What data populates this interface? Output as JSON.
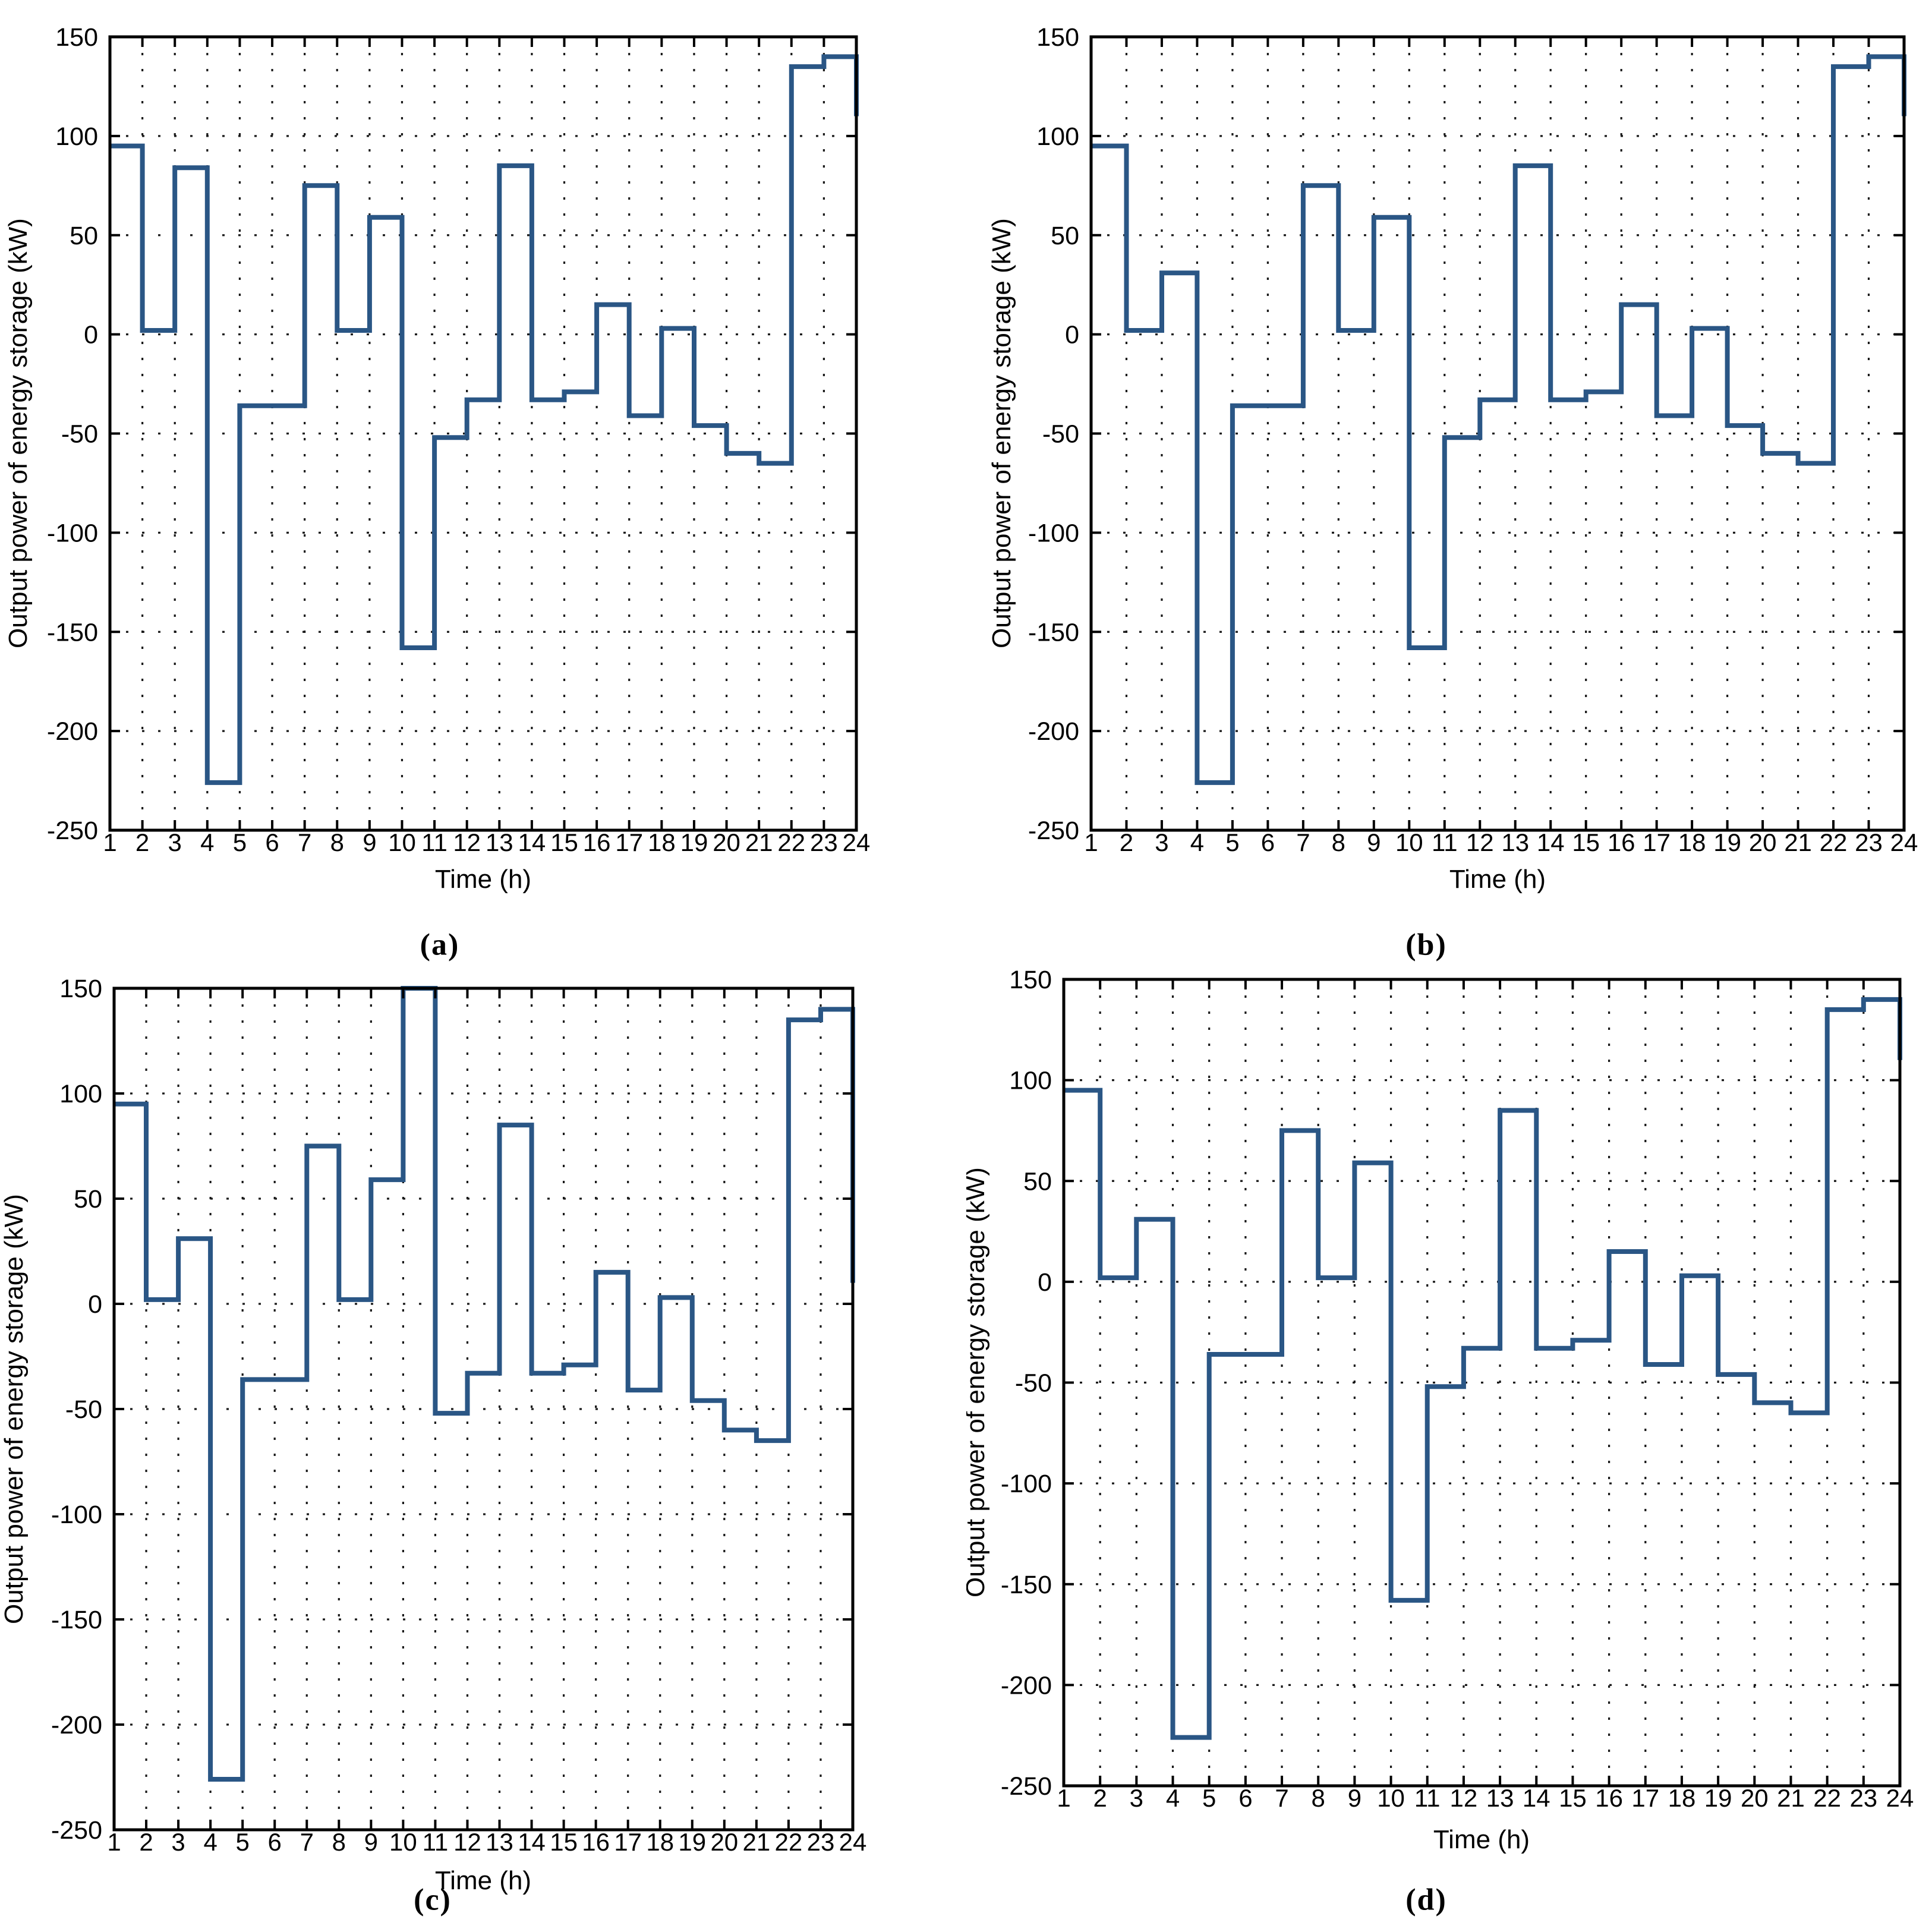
{
  "figure": {
    "background_color": "#ffffff",
    "frame_color": "#000000",
    "grid_style": "dotted",
    "panel_captions": [
      "(a)",
      "(b)",
      "(c)",
      "(d)"
    ]
  },
  "chart_data": [
    {
      "id": "a",
      "caption": "(a)",
      "type": "line",
      "subtype": "stairs",
      "xlabel": "Time (h)",
      "ylabel": "Output power of energy storage (kW)",
      "xlim": [
        1,
        24
      ],
      "ylim": [
        -250,
        150
      ],
      "xticks": [
        1,
        2,
        3,
        4,
        5,
        6,
        7,
        8,
        9,
        10,
        11,
        12,
        13,
        14,
        15,
        16,
        17,
        18,
        19,
        20,
        21,
        22,
        23,
        24
      ],
      "yticks": [
        150,
        100,
        50,
        0,
        -50,
        -100,
        -150,
        -200,
        -250
      ],
      "grid": true,
      "legend": null,
      "line_color": "#2a5685",
      "x": [
        1,
        2,
        3,
        4,
        5,
        6,
        7,
        8,
        9,
        10,
        11,
        12,
        13,
        14,
        15,
        16,
        17,
        18,
        19,
        20,
        21,
        22,
        23,
        24
      ],
      "values": [
        95,
        2,
        84,
        -226,
        -36,
        -36,
        75,
        2,
        59,
        -158,
        -52,
        -33,
        85,
        -33,
        -29,
        15,
        -41,
        3,
        -46,
        -60,
        -65,
        135,
        140,
        110
      ]
    },
    {
      "id": "b",
      "caption": "(b)",
      "type": "line",
      "subtype": "stairs",
      "xlabel": "Time (h)",
      "ylabel": "Output power of energy storage (kW)",
      "xlim": [
        1,
        24
      ],
      "ylim": [
        -250,
        150
      ],
      "xticks": [
        1,
        2,
        3,
        4,
        5,
        6,
        7,
        8,
        9,
        10,
        11,
        12,
        13,
        14,
        15,
        16,
        17,
        18,
        19,
        20,
        21,
        22,
        23,
        24
      ],
      "yticks": [
        150,
        100,
        50,
        0,
        -50,
        -100,
        -150,
        -200,
        -250
      ],
      "grid": true,
      "legend": null,
      "line_color": "#2a5685",
      "x": [
        1,
        2,
        3,
        4,
        5,
        6,
        7,
        8,
        9,
        10,
        11,
        12,
        13,
        14,
        15,
        16,
        17,
        18,
        19,
        20,
        21,
        22,
        23,
        24
      ],
      "values": [
        95,
        2,
        31,
        -226,
        -36,
        -36,
        75,
        2,
        59,
        -158,
        -52,
        -33,
        85,
        -33,
        -29,
        15,
        -41,
        3,
        -46,
        -60,
        -65,
        135,
        140,
        110
      ]
    },
    {
      "id": "c",
      "caption": "(c)",
      "type": "line",
      "subtype": "stairs",
      "xlabel": "Time (h)",
      "ylabel": "Output power of energy storage (kW)",
      "xlim": [
        1,
        24
      ],
      "ylim": [
        -250,
        150
      ],
      "xticks": [
        1,
        2,
        3,
        4,
        5,
        6,
        7,
        8,
        9,
        10,
        11,
        12,
        13,
        14,
        15,
        16,
        17,
        18,
        19,
        20,
        21,
        22,
        23,
        24
      ],
      "yticks": [
        150,
        100,
        50,
        0,
        -50,
        -100,
        -150,
        -200,
        -250
      ],
      "grid": true,
      "legend": null,
      "line_color": "#2a5685",
      "x": [
        1,
        2,
        3,
        4,
        5,
        6,
        7,
        8,
        9,
        10,
        11,
        12,
        13,
        14,
        15,
        16,
        17,
        18,
        19,
        20,
        21,
        22,
        23,
        24
      ],
      "values": [
        95,
        2,
        31,
        -226,
        -36,
        -36,
        75,
        2,
        59,
        150,
        -52,
        -33,
        85,
        -33,
        -29,
        15,
        -41,
        3,
        -46,
        -60,
        -65,
        135,
        140,
        10
      ],
      "note": "step at hour 10 rises to the top axis limit (clipped at +150)"
    },
    {
      "id": "d",
      "caption": "(d)",
      "type": "line",
      "subtype": "stairs",
      "xlabel": "Time (h)",
      "ylabel": "Output power of energy storage (kW)",
      "xlim": [
        1,
        24
      ],
      "ylim": [
        -250,
        150
      ],
      "xticks": [
        1,
        2,
        3,
        4,
        5,
        6,
        7,
        8,
        9,
        10,
        11,
        12,
        13,
        14,
        15,
        16,
        17,
        18,
        19,
        20,
        21,
        22,
        23,
        24
      ],
      "yticks": [
        150,
        100,
        50,
        0,
        -50,
        -100,
        -150,
        -200,
        -250
      ],
      "grid": true,
      "legend": null,
      "line_color": "#2a5685",
      "x": [
        1,
        2,
        3,
        4,
        5,
        6,
        7,
        8,
        9,
        10,
        11,
        12,
        13,
        14,
        15,
        16,
        17,
        18,
        19,
        20,
        21,
        22,
        23,
        24
      ],
      "values": [
        95,
        2,
        31,
        -226,
        -36,
        -36,
        75,
        2,
        59,
        -158,
        -52,
        -33,
        85,
        -33,
        -29,
        15,
        -41,
        3,
        -46,
        -60,
        -65,
        135,
        140,
        110
      ]
    }
  ]
}
